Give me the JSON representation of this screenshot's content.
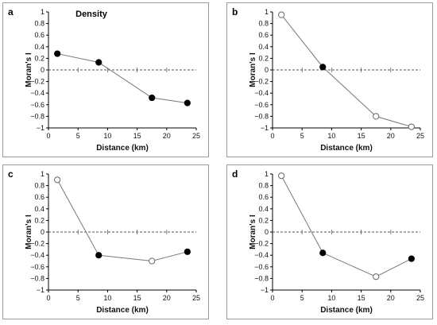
{
  "chart_data": [
    {
      "type": "line",
      "panel_label": "a",
      "title": "Density",
      "xlabel": "Distance (km)",
      "ylabel": "Moran's I",
      "xlim": [
        0,
        25
      ],
      "ylim": [
        -1,
        1
      ],
      "xticks": [
        "0",
        "5",
        "10",
        "15",
        "20",
        "25"
      ],
      "yticks": [
        "1",
        "0.8",
        "0.6",
        "0.4",
        "0.2",
        "0",
        "−0.2",
        "−0.4",
        "−0.6",
        "−0.8",
        "−1"
      ],
      "x": [
        1.5,
        8.5,
        17.5,
        23.5
      ],
      "values": [
        0.28,
        0.13,
        -0.48,
        -0.57
      ],
      "markers": [
        "filled",
        "filled",
        "filled",
        "filled"
      ]
    },
    {
      "type": "line",
      "panel_label": "b",
      "title": "",
      "xlabel": "Distance (km)",
      "ylabel": "Moran's I",
      "xlim": [
        0,
        25
      ],
      "ylim": [
        -1,
        1
      ],
      "xticks": [
        "0",
        "5",
        "10",
        "15",
        "20",
        "25"
      ],
      "yticks": [
        "1",
        "0.8",
        "0.6",
        "0.4",
        "0.2",
        "0",
        "−0.2",
        "−0.4",
        "−0.6",
        "−0.8",
        "−1"
      ],
      "x": [
        1.5,
        8.5,
        17.5,
        23.5
      ],
      "values": [
        0.95,
        0.05,
        -0.8,
        -0.98
      ],
      "markers": [
        "open",
        "filled",
        "open",
        "open"
      ]
    },
    {
      "type": "line",
      "panel_label": "c",
      "title": "",
      "xlabel": "Distance (km)",
      "ylabel": "Moran's I",
      "xlim": [
        0,
        25
      ],
      "ylim": [
        -1,
        1
      ],
      "xticks": [
        "0",
        "5",
        "10",
        "15",
        "20",
        "25"
      ],
      "yticks": [
        "1",
        "0.8",
        "0.6",
        "0.4",
        "0.2",
        "0",
        "−0.2",
        "−0.4",
        "−0.6",
        "−0.8",
        "−1"
      ],
      "x": [
        1.5,
        8.5,
        17.5,
        23.5
      ],
      "values": [
        0.9,
        -0.4,
        -0.5,
        -0.34
      ],
      "markers": [
        "open",
        "filled",
        "open",
        "filled"
      ]
    },
    {
      "type": "line",
      "panel_label": "d",
      "title": "",
      "xlabel": "Distance (km)",
      "ylabel": "Moran's I",
      "xlim": [
        0,
        25
      ],
      "ylim": [
        -1,
        1
      ],
      "xticks": [
        "0",
        "5",
        "10",
        "15",
        "20",
        "25"
      ],
      "yticks": [
        "1",
        "0.8",
        "0.6",
        "0.4",
        "0.2",
        "0",
        "−0.2",
        "−0.4",
        "−0.6",
        "−0.8",
        "−1"
      ],
      "x": [
        1.5,
        8.5,
        17.5,
        23.5
      ],
      "values": [
        0.97,
        -0.36,
        -0.77,
        -0.46
      ],
      "markers": [
        "open",
        "filled",
        "open",
        "filled"
      ]
    }
  ]
}
